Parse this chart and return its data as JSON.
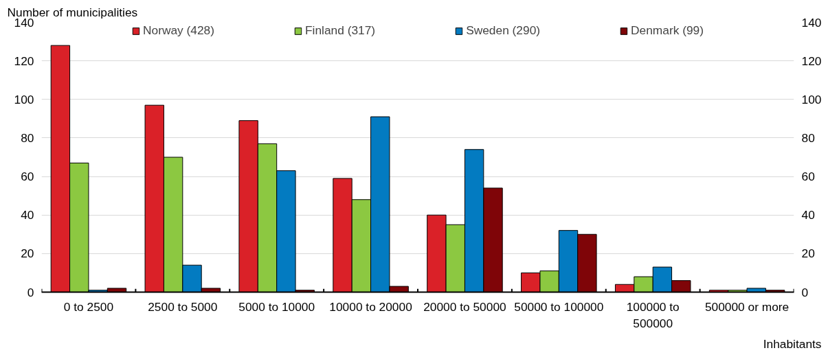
{
  "chart_data": {
    "type": "bar",
    "ylabel": "Number of municipalities",
    "xlabel": "Inhabitants",
    "categories": [
      "0 to 2500",
      "2500 to 5000",
      "5000 to 10000",
      "10000 to 20000",
      "20000 to 50000",
      "50000 to 100000",
      "100000 to\n500000",
      "500000 or more"
    ],
    "series": [
      {
        "name": "Norway (428)",
        "color": "#da2128",
        "values": [
          128,
          97,
          89,
          59,
          40,
          10,
          4,
          1
        ]
      },
      {
        "name": "Finland (317)",
        "color": "#8cc841",
        "values": [
          67,
          70,
          77,
          48,
          35,
          11,
          8,
          1
        ]
      },
      {
        "name": "Sweden (290)",
        "color": "#037bc1",
        "values": [
          1,
          14,
          63,
          91,
          74,
          32,
          13,
          2
        ]
      },
      {
        "name": "Denmark (99)",
        "color": "#7f0508",
        "values": [
          2,
          2,
          1,
          3,
          54,
          30,
          6,
          1
        ]
      }
    ],
    "ylim": [
      0,
      140
    ],
    "yticks": [
      0,
      20,
      40,
      60,
      80,
      100,
      120,
      140
    ],
    "y2lim": [
      0,
      140
    ],
    "y2ticks": [
      0,
      20,
      40,
      60,
      80,
      100,
      120,
      140
    ],
    "grid": "y",
    "legend": "top"
  }
}
